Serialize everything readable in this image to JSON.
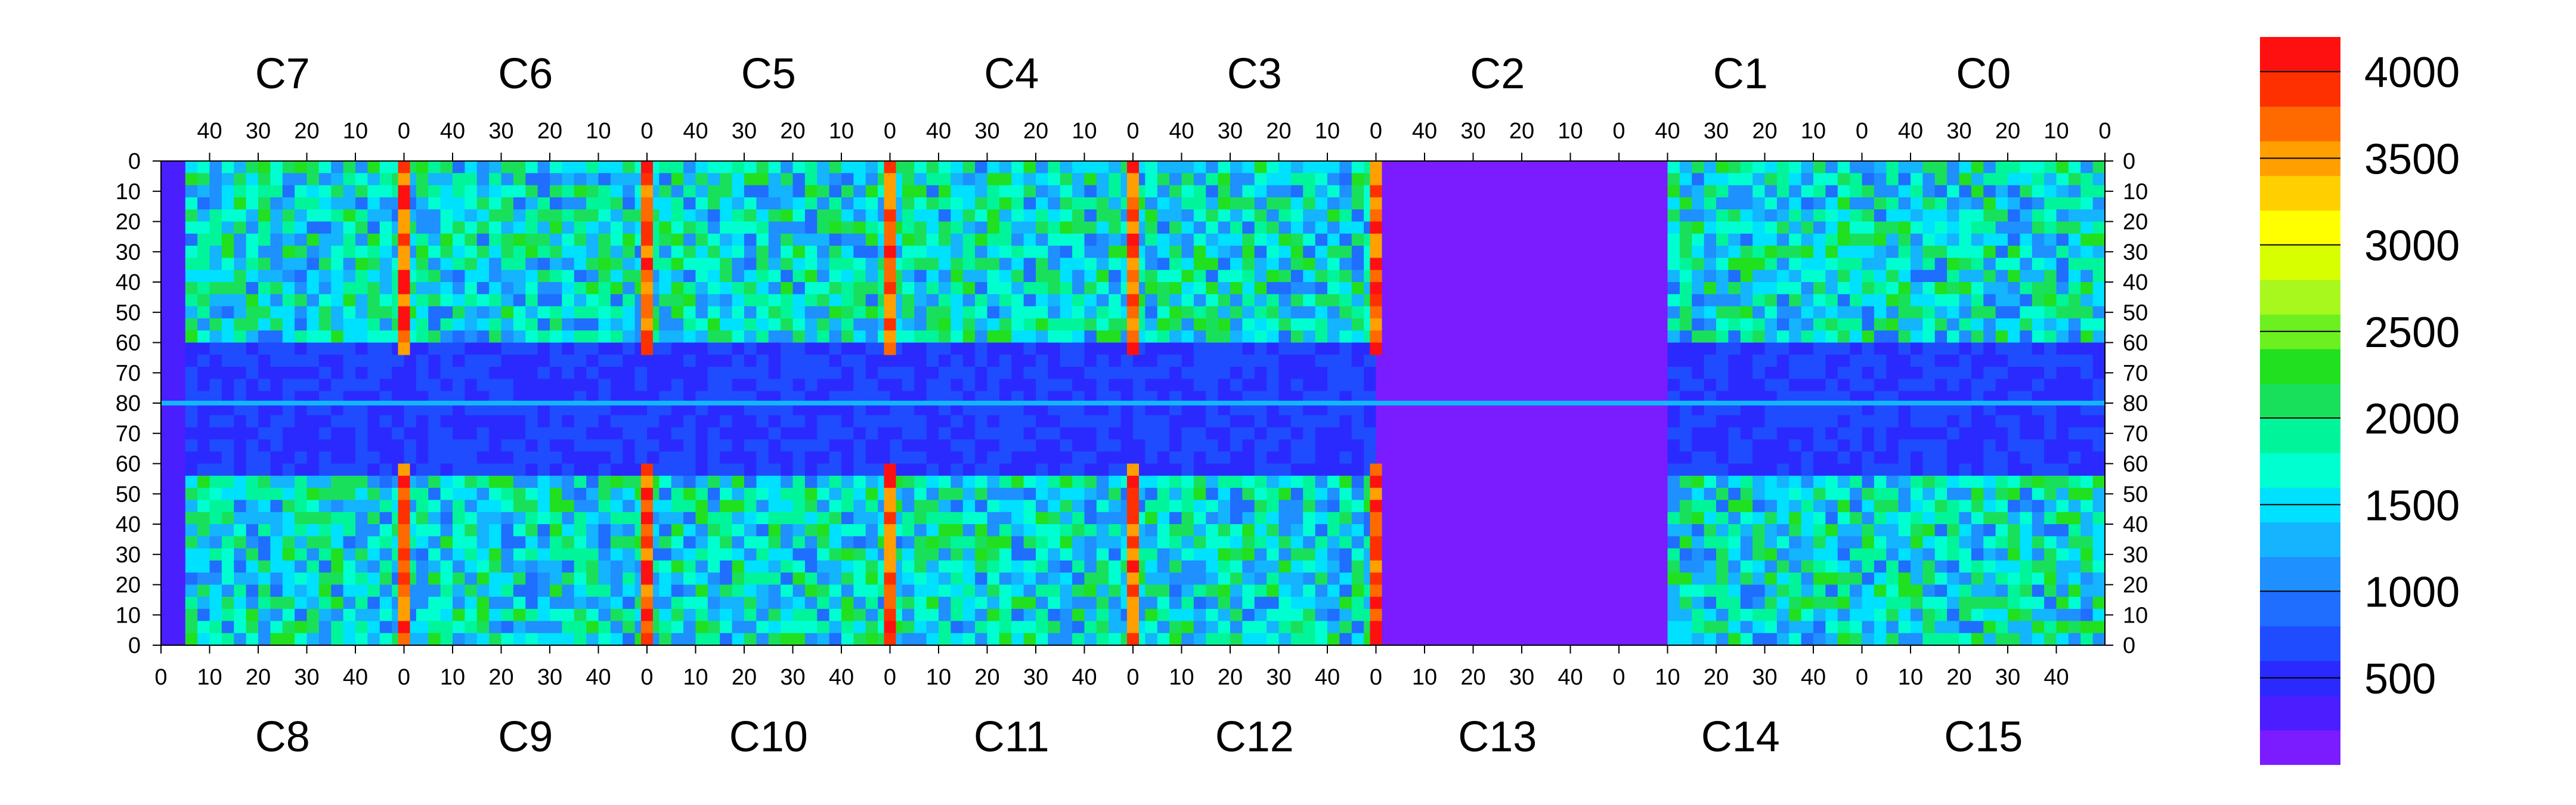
{
  "chart_data": {
    "type": "heatmap",
    "title": "",
    "top_chip_labels": [
      "C7",
      "C6",
      "C5",
      "C4",
      "C3",
      "C2",
      "C1",
      "C0"
    ],
    "bottom_chip_labels": [
      "C8",
      "C9",
      "C10",
      "C11",
      "C12",
      "C13",
      "C14",
      "C15"
    ],
    "top_axis_ticks": [
      "40",
      "30",
      "20",
      "10",
      "0"
    ],
    "bottom_axis_ticks": [
      "0",
      "10",
      "20",
      "30",
      "40"
    ],
    "left_axis_ticks": [
      "0",
      "10",
      "20",
      "30",
      "40",
      "50",
      "60",
      "70",
      "80",
      "70",
      "60",
      "50",
      "40",
      "30",
      "20",
      "10",
      "0"
    ],
    "right_axis_ticks": [
      "0",
      "10",
      "20",
      "30",
      "40",
      "50",
      "60",
      "70",
      "80",
      "70",
      "60",
      "50",
      "40",
      "30",
      "20",
      "10",
      "0"
    ],
    "colorbar": {
      "min": 0,
      "max": 4200,
      "ticks": [
        500,
        1000,
        1500,
        2000,
        2500,
        3000,
        3500,
        4000
      ],
      "tick_labels": [
        "500",
        "1000",
        "1500",
        "2000",
        "2500",
        "3000",
        "3500",
        "4000"
      ],
      "colors": [
        "#7a1cff",
        "#4a1eff",
        "#2a2aff",
        "#1f4cff",
        "#1f6eff",
        "#1e90ff",
        "#14b4ff",
        "#00e0ff",
        "#00ffd0",
        "#00f59a",
        "#19e05a",
        "#20e020",
        "#6cf020",
        "#a8f81e",
        "#d8ff00",
        "#ffff00",
        "#ffd000",
        "#ffa000",
        "#ff6a00",
        "#ff3000",
        "#ff1010"
      ]
    },
    "approx_levels": {
      "sensor_background": 1600,
      "central_row_band": 600,
      "column_edge_stripes": 3800,
      "empty_regions": 0,
      "chip_C13_C2_region": 0
    }
  }
}
